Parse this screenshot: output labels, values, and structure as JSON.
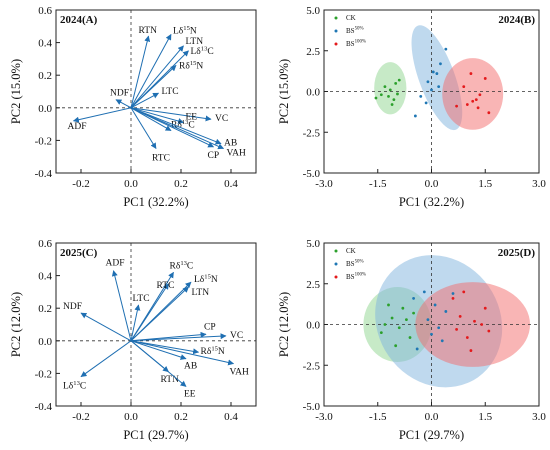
{
  "chart_data": [
    {
      "id": "A",
      "type": "biplot",
      "panel_label": "2024(A)",
      "xlabel": "PC1 (32.2%)",
      "ylabel": "PC2 (15.0%)",
      "xlim": [
        -0.3,
        0.5
      ],
      "ylim": [
        -0.4,
        0.6
      ],
      "xticks": [
        "-0.2",
        "0.0",
        "0.2",
        "0.4"
      ],
      "yticks": [
        "-0.4",
        "-0.2",
        "0.0",
        "0.2",
        "0.4",
        "0.6"
      ],
      "arrow_color": "#1f6fb2",
      "loadings": [
        {
          "label": "RTN",
          "x": 0.07,
          "y": 0.44
        },
        {
          "label": "Lδ15N",
          "x": 0.16,
          "y": 0.45
        },
        {
          "label": "LTN",
          "x": 0.21,
          "y": 0.38
        },
        {
          "label": "Lδ13C",
          "x": 0.23,
          "y": 0.35
        },
        {
          "label": "Rδ15N",
          "x": 0.18,
          "y": 0.26
        },
        {
          "label": "LTC",
          "x": 0.11,
          "y": 0.09
        },
        {
          "label": "NDF",
          "x": -0.06,
          "y": 0.05
        },
        {
          "label": "ADF",
          "x": -0.23,
          "y": -0.08
        },
        {
          "label": "VC",
          "x": 0.32,
          "y": -0.07
        },
        {
          "label": "EE",
          "x": 0.21,
          "y": -0.09
        },
        {
          "label": "Rδ13C",
          "x": 0.16,
          "y": -0.14
        },
        {
          "label": "AB",
          "x": 0.36,
          "y": -0.22
        },
        {
          "label": "VAH",
          "x": 0.37,
          "y": -0.25
        },
        {
          "label": "CP",
          "x": 0.33,
          "y": -0.24
        },
        {
          "label": "RTC",
          "x": 0.1,
          "y": -0.25
        }
      ]
    },
    {
      "id": "B",
      "type": "scatter",
      "panel_label": "2024(B)",
      "xlabel": "PC1 (32.2%)",
      "ylabel": "PC2 (15.0%)",
      "xlim": [
        -3.0,
        3.0
      ],
      "ylim": [
        -5.0,
        5.0
      ],
      "xticks": [
        "-3.0",
        "-1.5",
        "0.0",
        "1.5",
        "3.0"
      ],
      "yticks": [
        "-5.0",
        "-2.5",
        "0.0",
        "2.5",
        "5.0"
      ],
      "series": [
        {
          "name": "CK",
          "color": "#2ca02c",
          "fill": "#8fd68f",
          "ellipse": {
            "cx": -1.15,
            "cy": 0.2,
            "rx": 0.45,
            "ry": 1.6,
            "angle_deg": 0
          },
          "points": [
            [
              -1.55,
              -0.4
            ],
            [
              -1.3,
              0.3
            ],
            [
              -1.2,
              -0.3
            ],
            [
              -1.15,
              0.1
            ],
            [
              -1.05,
              -0.5
            ],
            [
              -1.0,
              0.5
            ],
            [
              -0.9,
              0.7
            ],
            [
              -1.1,
              -0.8
            ],
            [
              -0.95,
              -0.15
            ],
            [
              -1.4,
              -0.2
            ]
          ]
        },
        {
          "name": "BS50%",
          "color": "#1f77b4",
          "fill": "#7fb3dd",
          "ellipse": {
            "cx": 0.15,
            "cy": 0.85,
            "rx": 0.5,
            "ry": 3.4,
            "angle_deg": 20
          },
          "points": [
            [
              -0.45,
              -1.5
            ],
            [
              -0.15,
              -0.7
            ],
            [
              0.0,
              0.1
            ],
            [
              -0.1,
              0.6
            ],
            [
              0.15,
              1.1
            ],
            [
              0.25,
              1.7
            ],
            [
              0.4,
              2.6
            ],
            [
              0.05,
              1.2
            ],
            [
              -0.3,
              -0.3
            ],
            [
              0.2,
              0.3
            ]
          ]
        },
        {
          "name": "BS100%",
          "color": "#e41a1c",
          "fill": "#f36b6b",
          "ellipse": {
            "cx": 1.15,
            "cy": -0.15,
            "rx": 0.85,
            "ry": 2.2,
            "angle_deg": 0
          },
          "points": [
            [
              0.9,
              0.3
            ],
            [
              1.1,
              1.1
            ],
            [
              1.25,
              -0.5
            ],
            [
              1.0,
              -0.8
            ],
            [
              1.3,
              -1.0
            ],
            [
              1.5,
              0.8
            ],
            [
              1.6,
              -1.3
            ],
            [
              0.7,
              -0.9
            ],
            [
              1.15,
              -0.6
            ],
            [
              1.35,
              -0.2
            ]
          ]
        }
      ]
    },
    {
      "id": "C",
      "type": "biplot",
      "panel_label": "2025(C)",
      "xlabel": "PC1 (29.7%)",
      "ylabel": "PC2 (12.0%)",
      "xlim": [
        -0.3,
        0.5
      ],
      "ylim": [
        -0.4,
        0.6
      ],
      "xticks": [
        "-0.2",
        "0.0",
        "0.2",
        "0.4"
      ],
      "yticks": [
        "-0.4",
        "-0.2",
        "0.0",
        "0.2",
        "0.4",
        "0.6"
      ],
      "arrow_color": "#1f6fb2",
      "loadings": [
        {
          "label": "ADF",
          "x": -0.07,
          "y": 0.43
        },
        {
          "label": "NDF",
          "x": -0.2,
          "y": 0.17
        },
        {
          "label": "LTC",
          "x": 0.03,
          "y": 0.22
        },
        {
          "label": "Rδ13C",
          "x": 0.17,
          "y": 0.42
        },
        {
          "label": "RTC",
          "x": 0.15,
          "y": 0.35
        },
        {
          "label": "Lδ15N",
          "x": 0.24,
          "y": 0.36
        },
        {
          "label": "LTN",
          "x": 0.23,
          "y": 0.33
        },
        {
          "label": "CP",
          "x": 0.3,
          "y": 0.04
        },
        {
          "label": "VC",
          "x": 0.38,
          "y": 0.03
        },
        {
          "label": "Rδ15N",
          "x": 0.27,
          "y": -0.07
        },
        {
          "label": "AB",
          "x": 0.22,
          "y": -0.11
        },
        {
          "label": "VAH",
          "x": 0.41,
          "y": -0.14
        },
        {
          "label": "RTN",
          "x": 0.15,
          "y": -0.19
        },
        {
          "label": "EE",
          "x": 0.22,
          "y": -0.28
        },
        {
          "label": "Lδ13C",
          "x": -0.2,
          "y": -0.22
        }
      ]
    },
    {
      "id": "D",
      "type": "scatter",
      "panel_label": "2025(D)",
      "xlabel": "PC1 (29.7%)",
      "ylabel": "PC2 (12.0%)",
      "xlim": [
        -3.0,
        3.0
      ],
      "ylim": [
        -5.0,
        5.0
      ],
      "xticks": [
        "-3.0",
        "-1.5",
        "0.0",
        "1.5",
        "3.0"
      ],
      "yticks": [
        "-5.0",
        "-2.5",
        "0.0",
        "2.5",
        "5.0"
      ],
      "series": [
        {
          "name": "CK",
          "color": "#2ca02c",
          "fill": "#8fd68f",
          "ellipse": {
            "cx": -0.95,
            "cy": 0.0,
            "rx": 0.95,
            "ry": 2.3,
            "angle_deg": 0
          },
          "points": [
            [
              -1.4,
              -0.5
            ],
            [
              -1.1,
              0.4
            ],
            [
              -0.9,
              -0.2
            ],
            [
              -0.8,
              1.0
            ],
            [
              -0.6,
              -0.8
            ],
            [
              -1.2,
              1.2
            ],
            [
              -0.7,
              0.3
            ],
            [
              -1.0,
              -1.3
            ],
            [
              -0.5,
              0.7
            ],
            [
              -1.3,
              0.0
            ]
          ]
        },
        {
          "name": "BS50%",
          "color": "#1f77b4",
          "fill": "#7fb3dd",
          "ellipse": {
            "cx": 0.2,
            "cy": 0.2,
            "rx": 1.7,
            "ry": 4.2,
            "angle_deg": 35
          },
          "points": [
            [
              -0.5,
              1.6
            ],
            [
              -0.2,
              2.0
            ],
            [
              0.1,
              1.2
            ],
            [
              0.4,
              0.8
            ],
            [
              0.0,
              -0.6
            ],
            [
              -0.4,
              -1.5
            ],
            [
              0.3,
              -1.0
            ],
            [
              -0.1,
              0.3
            ],
            [
              0.6,
              1.9
            ],
            [
              0.2,
              -0.2
            ]
          ]
        },
        {
          "name": "BS100%",
          "color": "#e41a1c",
          "fill": "#f36b6b",
          "ellipse": {
            "cx": 1.15,
            "cy": 0.0,
            "rx": 1.6,
            "ry": 2.6,
            "angle_deg": 0
          },
          "points": [
            [
              0.6,
              1.6
            ],
            [
              0.9,
              2.0
            ],
            [
              1.2,
              0.2
            ],
            [
              1.4,
              0.0
            ],
            [
              1.0,
              -0.8
            ],
            [
              1.6,
              -0.4
            ],
            [
              0.8,
              0.5
            ],
            [
              1.1,
              -1.6
            ],
            [
              1.5,
              1.0
            ],
            [
              0.7,
              -0.3
            ]
          ]
        }
      ]
    }
  ]
}
